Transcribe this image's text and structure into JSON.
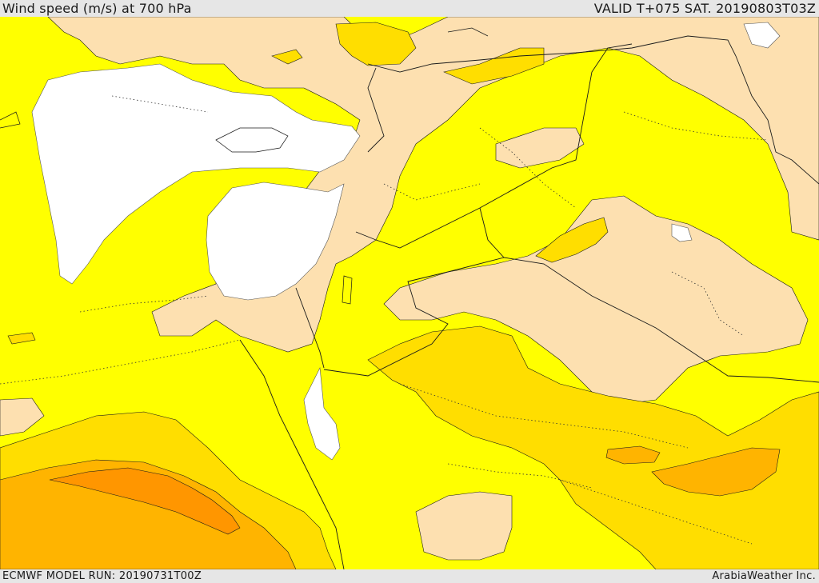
{
  "header": {
    "title": "Wind speed (m/s) at 700 hPa",
    "valid_time": "VALID T+075 SAT. 20190803T03Z"
  },
  "footer": {
    "model_run": "ECMWF MODEL RUN: 20190731T00Z",
    "credit": "ArabiaWeather Inc."
  },
  "map": {
    "variable": "wind speed",
    "level": "700 hPa",
    "region": "Eastern Mediterranean and Middle East",
    "colors": {
      "calm_white": "#ffffff",
      "light_tan": "#fde0b0",
      "yellow": "#ffff00",
      "gold": "#ffde00",
      "orange": "#ffb400",
      "dark_orange": "#ff9600",
      "borders": "#1a1a1a"
    }
  }
}
